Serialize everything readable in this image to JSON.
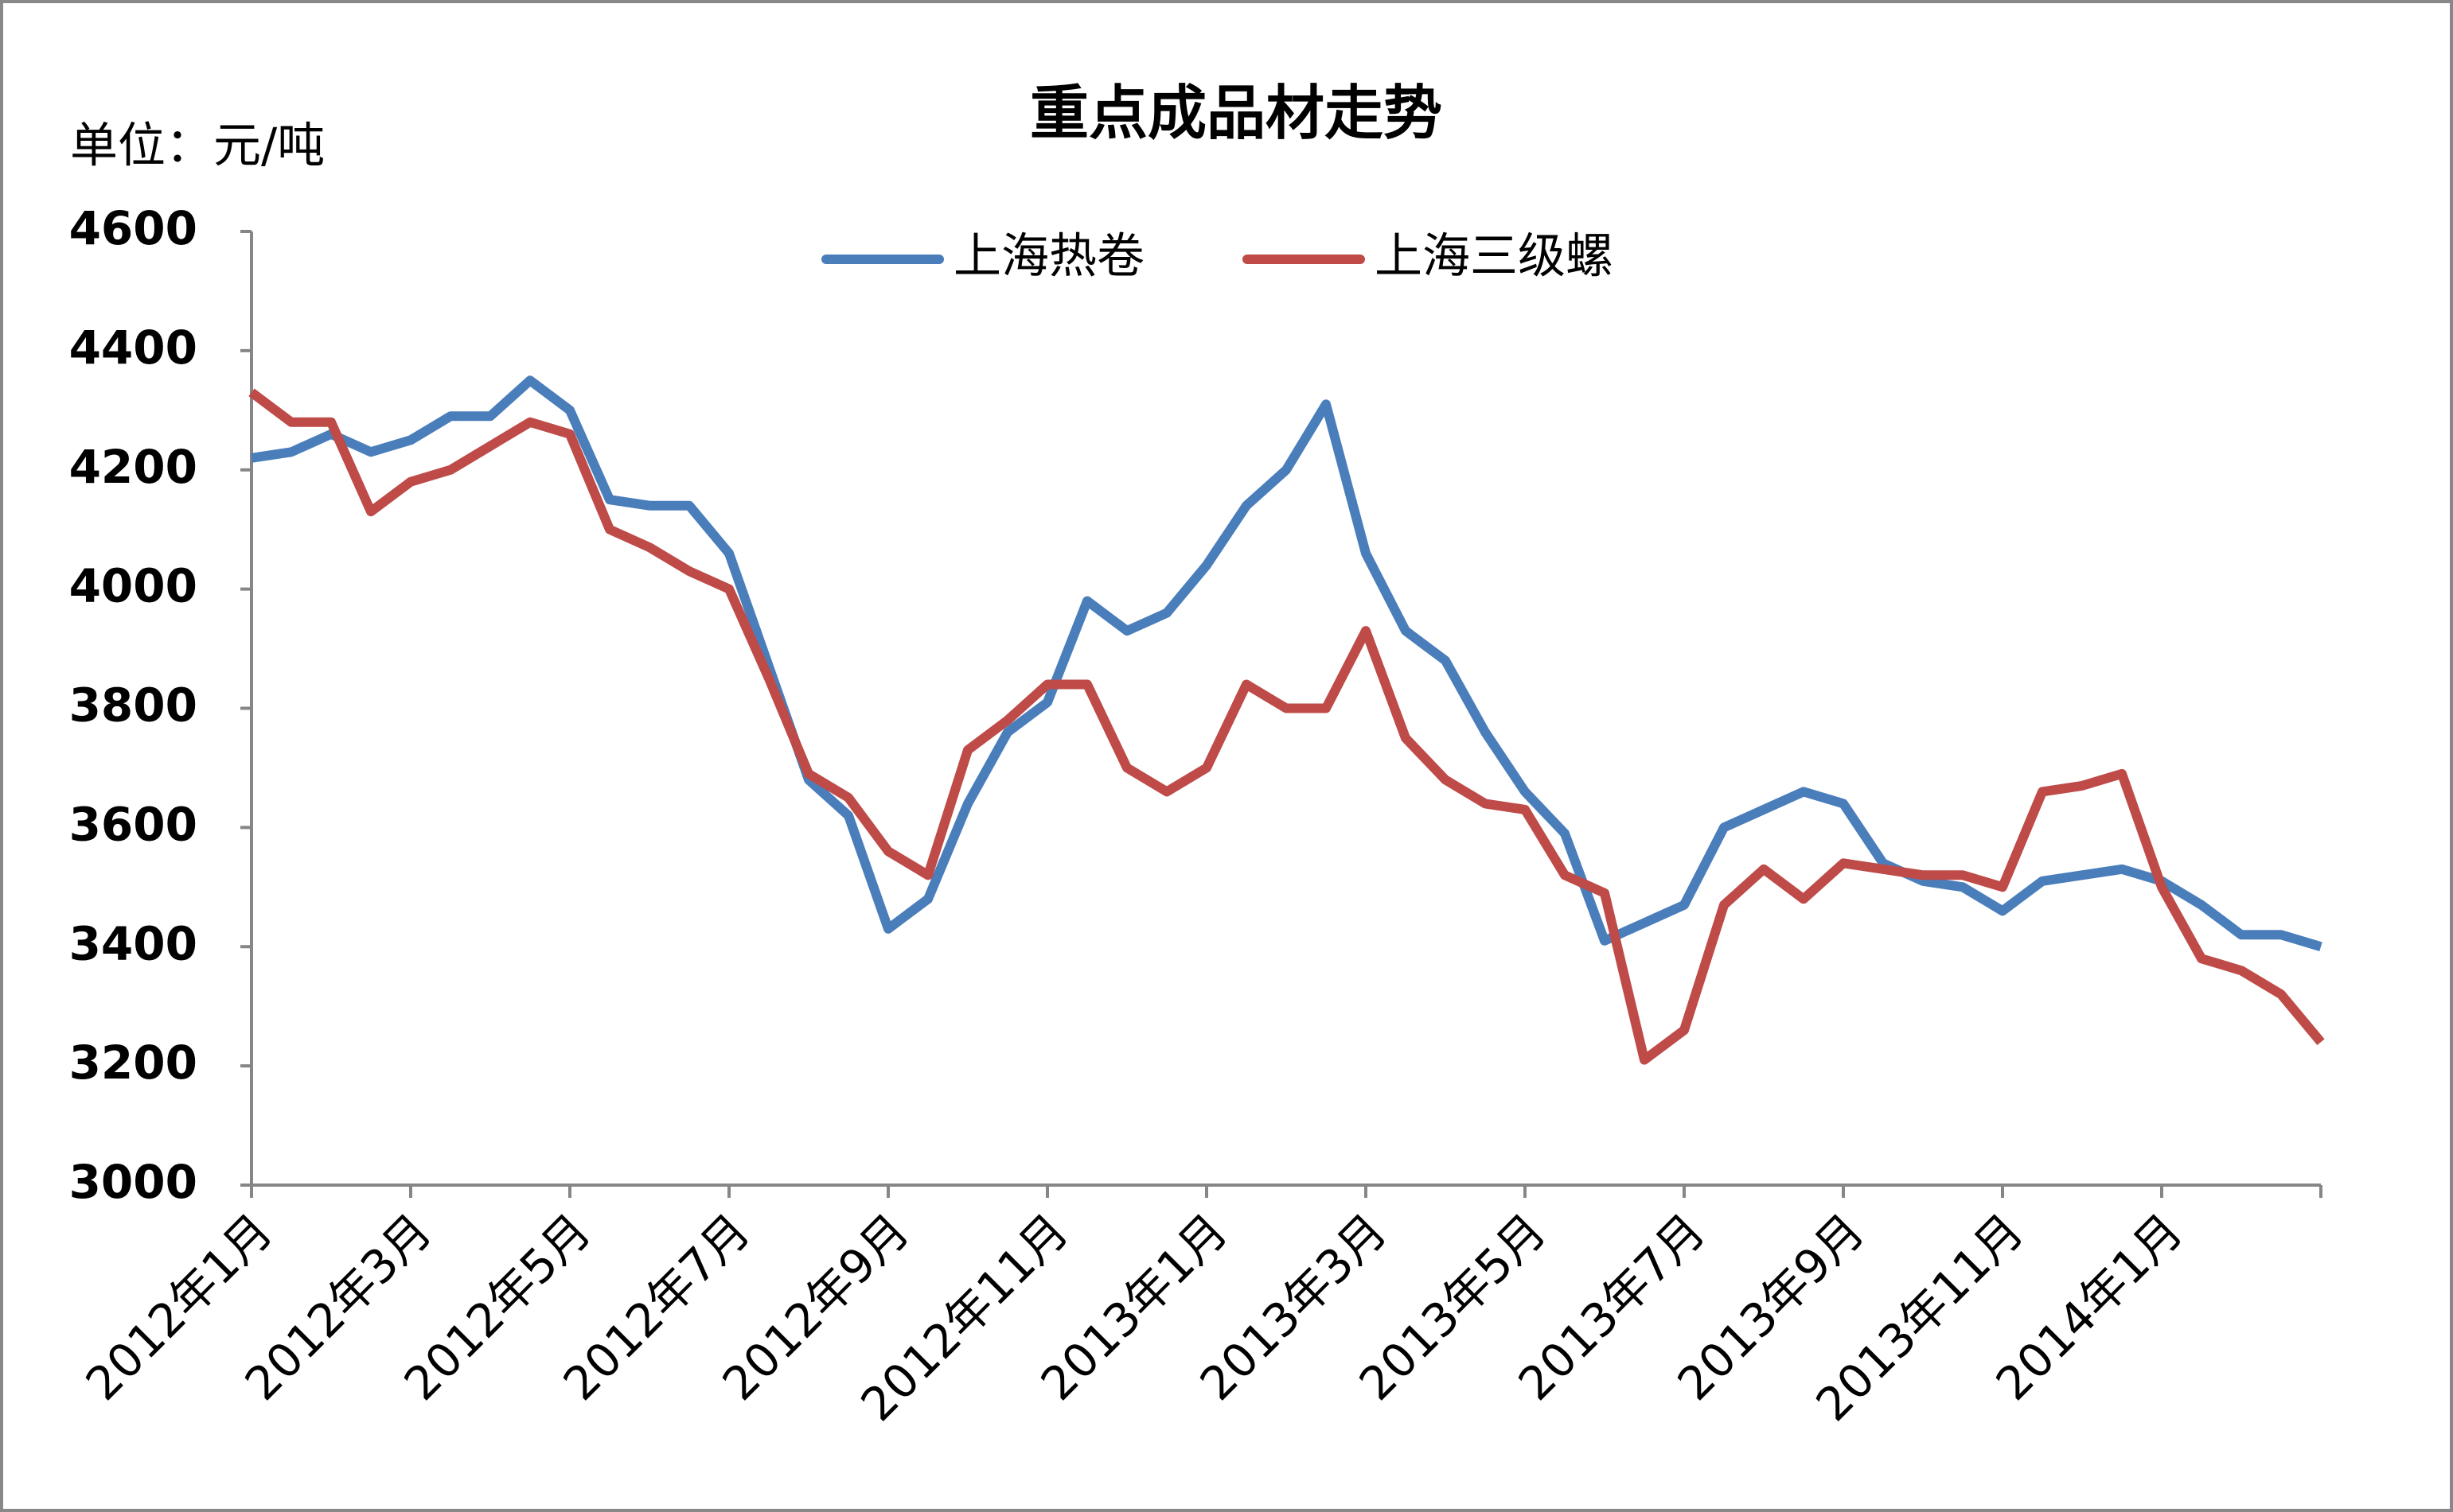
{
  "chart_data": {
    "type": "line",
    "title": "重点成品材走势",
    "y_axis_label": "单位：元/吨",
    "categories": [
      "2012年1月",
      null,
      null,
      null,
      "2012年3月",
      null,
      null,
      null,
      "2012年5月",
      null,
      null,
      null,
      "2012年7月",
      null,
      null,
      null,
      "2012年9月",
      null,
      null,
      null,
      "2012年11月",
      null,
      null,
      null,
      "2013年1月",
      null,
      null,
      null,
      "2013年3月",
      null,
      null,
      null,
      "2013年5月",
      null,
      null,
      null,
      "2013年7月",
      null,
      null,
      null,
      "2013年9月",
      null,
      null,
      null,
      "2013年11月",
      null,
      null,
      null,
      "2014年1月",
      null,
      null,
      null,
      null
    ],
    "series": [
      {
        "name": "上海热卷",
        "color": "#4a7ebb",
        "values": [
          4220,
          4230,
          4260,
          4230,
          4250,
          4290,
          4290,
          4350,
          4300,
          4150,
          4140,
          4140,
          4060,
          3870,
          3680,
          3620,
          3430,
          3480,
          3640,
          3760,
          3810,
          3980,
          3930,
          3960,
          4040,
          4140,
          4200,
          4310,
          4060,
          3930,
          3880,
          3760,
          3660,
          3590,
          3410,
          3440,
          3470,
          3600,
          3630,
          3660,
          3640,
          3540,
          3510,
          3500,
          3460,
          3510,
          3520,
          3530,
          3510,
          3470,
          3420,
          3420,
          3400
        ]
      },
      {
        "name": "上海三级螺",
        "color": "#be4b48",
        "values": [
          4330,
          4280,
          4280,
          4130,
          4180,
          4200,
          4240,
          4280,
          4260,
          4100,
          4070,
          4030,
          4000,
          3850,
          3690,
          3650,
          3560,
          3520,
          3730,
          3780,
          3840,
          3840,
          3700,
          3660,
          3700,
          3840,
          3800,
          3800,
          3930,
          3750,
          3680,
          3640,
          3630,
          3520,
          3490,
          3210,
          3260,
          3470,
          3530,
          3480,
          3540,
          3530,
          3520,
          3520,
          3500,
          3660,
          3670,
          3690,
          3500,
          3380,
          3360,
          3320,
          3240
        ]
      }
    ],
    "ylim": [
      3000,
      4600
    ],
    "yticks": [
      3000,
      3200,
      3400,
      3600,
      3800,
      4000,
      4200,
      4400,
      4600
    ],
    "legend": "top"
  }
}
